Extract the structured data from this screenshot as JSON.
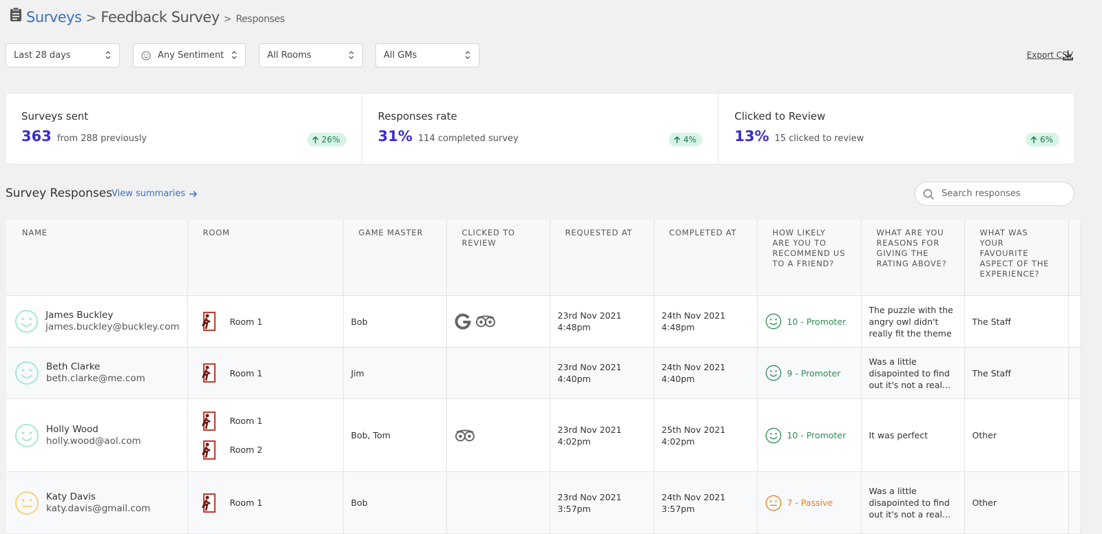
{
  "breadcrumb": {
    "root": "Surveys",
    "separator": ">",
    "survey": "Feedback Survey",
    "page": "Responses"
  },
  "filters": [
    "Last 28 days",
    "Any Sentiment",
    "All Rooms",
    "All GMs"
  ],
  "export": "Export CSV",
  "stats": [
    {
      "label": "Surveys sent",
      "value": "363",
      "detail": "from 288 previously",
      "change": "26%"
    },
    {
      "label": "Responses rate",
      "value": "31%",
      "detail": "114 completed survey",
      "change": "4%"
    },
    {
      "label": "Clicked to Review",
      "value": "13%",
      "detail": "15 clicked to review",
      "change": "6%"
    }
  ],
  "section": {
    "title": "Survey Responses",
    "link": "View summaries",
    "search_placeholder": "Search responses"
  },
  "table": {
    "columns": [
      "NAME",
      "ROOM",
      "GAME MASTER",
      "CLICKED TO REVIEW",
      "REQUESTED AT",
      "COMPLETED AT",
      "HOW LIKELY ARE YOU TO RECOMMEND US TO A FRIEND?",
      "WHAT ARE YOU REASONS FOR GIVING THE RATING ABOVE?",
      "WHAT WAS YOUR FAVOURITE ASPECT OF THE EXPERIENCE?"
    ],
    "rows": [
      {
        "name": "James Buckley",
        "email": "james.buckley@buckley.com",
        "rooms": [
          "Room 1"
        ],
        "game_master": "Bob",
        "requested": [
          "23rd Nov 2021",
          "4:48pm"
        ],
        "completed": [
          "24th Nov 2021",
          "4:48pm"
        ],
        "score": "10 - Promoter",
        "reason": "The puzzle with the angry owl didn't really fit the theme",
        "favourite": "The Staff"
      },
      {
        "name": "Beth Clarke",
        "email": "beth.clarke@me.com",
        "rooms": [
          "Room 1"
        ],
        "game_master": "Jim",
        "requested": [
          "23rd Nov 2021",
          "4:40pm"
        ],
        "completed": [
          "24th Nov 2021",
          "4:40pm"
        ],
        "score": "9 - Promoter",
        "reason": "Was a little disapointed to find out it's not a real...",
        "favourite": "The Staff"
      },
      {
        "name": "Holly Wood",
        "email": "holly.wood@aol.com",
        "rooms": [
          "Room 1",
          "Room 2"
        ],
        "game_master": "Bob, Tom",
        "requested": [
          "23rd Nov 2021",
          "4:02pm"
        ],
        "completed": [
          "25th Nov 2021",
          "4:02pm"
        ],
        "score": "10 - Promoter",
        "reason": "It was perfect",
        "favourite": "Other"
      },
      {
        "name": "Katy Davis",
        "email": "katy.davis@gmail.com",
        "rooms": [
          "Room 1"
        ],
        "game_master": "Bob",
        "requested": [
          "23rd Nov 2021",
          "3:57pm"
        ],
        "completed": [
          "24th Nov 2021",
          "3:57pm"
        ],
        "score": "7 - Passive",
        "reason": "Was a little disapointed to find out it's not a real...",
        "favourite": "Other"
      }
    ]
  }
}
